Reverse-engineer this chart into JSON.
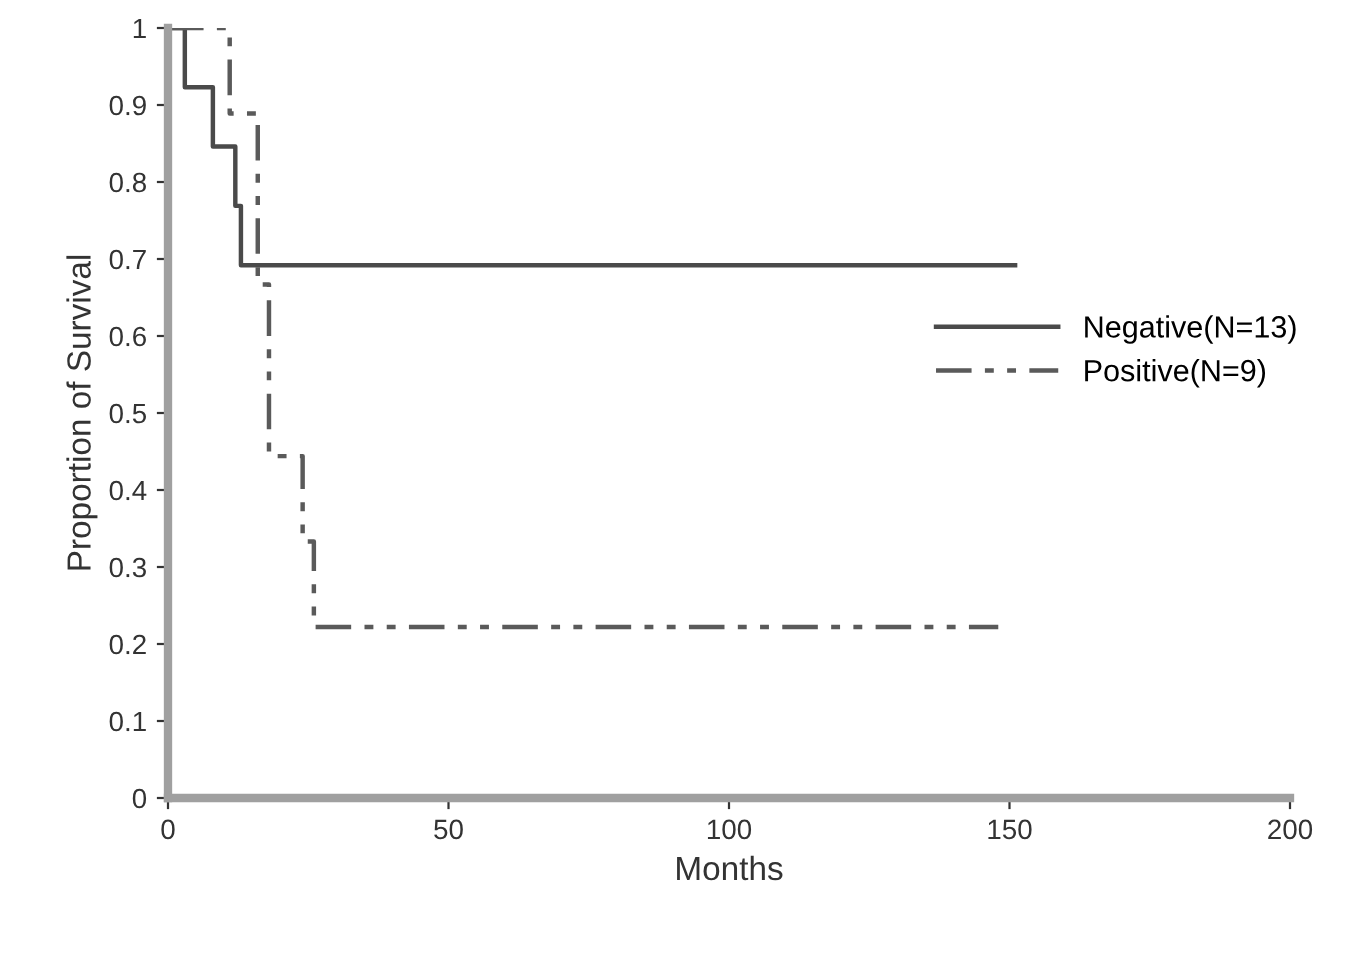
{
  "chart_data": {
    "type": "step",
    "xlabel": "Months",
    "ylabel": "Proportion of Survival",
    "series": [
      {
        "name": "Negative(N=13)",
        "color": "#4a4a4a",
        "line_style": "solid",
        "x": [
          0,
          3,
          8,
          12,
          13,
          151
        ],
        "values": [
          1,
          0.923,
          0.846,
          0.769,
          0.692,
          0.692
        ]
      },
      {
        "name": "Positive(N=9)",
        "color": "#5a5a5a",
        "line_style": "dashdot",
        "x": [
          0,
          11,
          16,
          18,
          24,
          26,
          148
        ],
        "values": [
          1,
          0.889,
          0.667,
          0.444,
          0.333,
          0.222,
          0.222
        ]
      }
    ],
    "xlim": [
      0,
      200
    ],
    "xticks": [
      0,
      50,
      100,
      150,
      200
    ],
    "ylim": [
      0,
      1
    ],
    "yticks": [
      0,
      0.1,
      0.2,
      0.3,
      0.4,
      0.5,
      0.6,
      0.7,
      0.8,
      0.9,
      1
    ],
    "grid": false,
    "legend": "right",
    "marker": "none"
  }
}
